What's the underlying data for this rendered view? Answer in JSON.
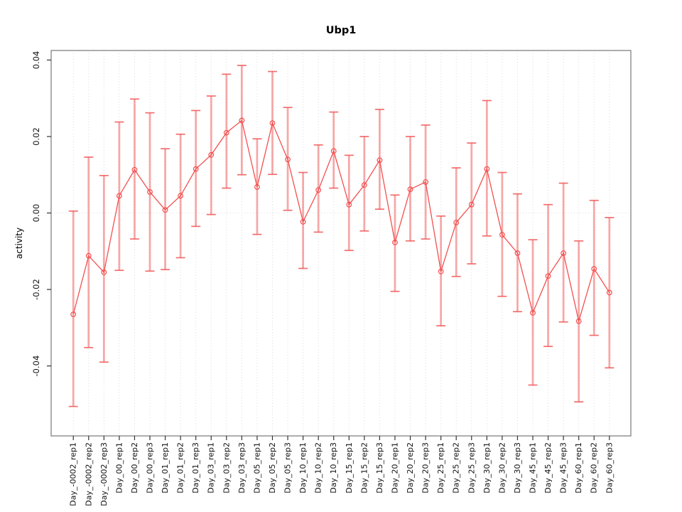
{
  "figure": {
    "title": "Ubp1",
    "ylabel": "activity",
    "xlabel": ""
  },
  "chart_data": {
    "type": "line",
    "title": "Ubp1",
    "ylabel": "activity",
    "xlabel": "",
    "legend": "none",
    "grid": "vertical dotted gridlines at every category; dotted horizontal line at y=0",
    "marker": "open-circle",
    "error_bars": true,
    "categories": [
      "Day_-0002_rep1",
      "Day_-0002_rep2",
      "Day_-0002_rep3",
      "Day_00_rep1",
      "Day_00_rep2",
      "Day_00_rep3",
      "Day_01_rep1",
      "Day_01_rep2",
      "Day_01_rep3",
      "Day_03_rep1",
      "Day_03_rep2",
      "Day_03_rep3",
      "Day_05_rep1",
      "Day_05_rep2",
      "Day_05_rep3",
      "Day_10_rep1",
      "Day_10_rep2",
      "Day_10_rep3",
      "Day_15_rep1",
      "Day_15_rep2",
      "Day_15_rep3",
      "Day_20_rep1",
      "Day_20_rep2",
      "Day_20_rep3",
      "Day_25_rep1",
      "Day_25_rep2",
      "Day_25_rep3",
      "Day_30_rep1",
      "Day_30_rep2",
      "Day_30_rep3",
      "Day_45_rep1",
      "Day_45_rep2",
      "Day_45_rep3",
      "Day_60_rep1",
      "Day_60_rep2",
      "Day_60_rep3"
    ],
    "series": [
      {
        "name": "activity",
        "values": [
          -0.0265,
          -0.0112,
          -0.0155,
          0.0045,
          0.0113,
          0.0055,
          0.0008,
          0.0045,
          0.0115,
          0.0152,
          0.021,
          0.0242,
          0.0068,
          0.0235,
          0.014,
          -0.0023,
          0.006,
          0.0162,
          0.0022,
          0.0073,
          0.0138,
          -0.0077,
          0.0062,
          0.0081,
          -0.0153,
          -0.0025,
          0.0022,
          0.0115,
          -0.0057,
          -0.0105,
          -0.0261,
          -0.0165,
          -0.0105,
          -0.0283,
          -0.0146,
          -0.0208
        ],
        "err_high": [
          0.0005,
          0.0146,
          0.0098,
          0.0238,
          0.0298,
          0.0262,
          0.0168,
          0.0206,
          0.0268,
          0.0306,
          0.0363,
          0.0386,
          0.0194,
          0.037,
          0.0276,
          0.0106,
          0.0178,
          0.0264,
          0.0151,
          0.02,
          0.0271,
          0.0047,
          0.02,
          0.023,
          -0.0008,
          0.0118,
          0.0183,
          0.0294,
          0.0106,
          0.005,
          -0.007,
          0.0022,
          0.0078,
          -0.0073,
          0.0033,
          -0.0012
        ],
        "err_low": [
          -0.0506,
          -0.0352,
          -0.039,
          -0.015,
          -0.0068,
          -0.0152,
          -0.0148,
          -0.0117,
          -0.0035,
          -0.0004,
          0.0065,
          0.01,
          -0.0056,
          0.0101,
          0.0007,
          -0.0145,
          -0.005,
          0.0065,
          -0.0098,
          -0.0047,
          0.001,
          -0.0205,
          -0.0073,
          -0.0068,
          -0.0295,
          -0.0166,
          -0.0133,
          -0.006,
          -0.0218,
          -0.0258,
          -0.045,
          -0.0349,
          -0.0285,
          -0.0494,
          -0.032,
          -0.0405
        ]
      }
    ],
    "yticks": [
      -0.04,
      -0.02,
      0,
      0.02,
      0.04
    ],
    "ytick_labels": [
      "-0.04",
      "-0.02",
      "0.00",
      "0.02",
      "0.04"
    ],
    "ylim": [
      -0.0583,
      0.0425
    ],
    "colors": {
      "series_line": "#f25050",
      "marker_stroke": "#f25050",
      "error_bar": "#f25555",
      "gridline": "#d7d7d7",
      "zero_line": "#d7d7d7",
      "frame": "#8c8c8c",
      "tick": "#333333",
      "text": "#111111"
    }
  }
}
